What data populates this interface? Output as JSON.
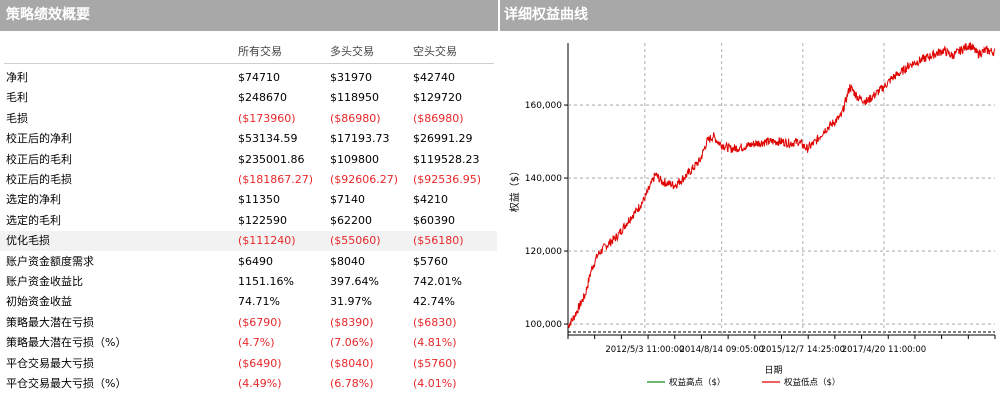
{
  "left_panel": {
    "title": "策略绩效概要",
    "columns": [
      "所有交易",
      "多头交易",
      "空头交易"
    ],
    "rows": [
      {
        "label": "净利",
        "values": [
          "$74710",
          "$31970",
          "$42740"
        ],
        "negative": false
      },
      {
        "label": "毛利",
        "values": [
          "$248670",
          "$118950",
          "$129720"
        ],
        "negative": false
      },
      {
        "label": "毛损",
        "values": [
          "($173960)",
          "($86980)",
          "($86980)"
        ],
        "negative": true
      },
      {
        "label": "校正后的净利",
        "values": [
          "$53134.59",
          "$17193.73",
          "$26991.29"
        ],
        "negative": false
      },
      {
        "label": "校正后的毛利",
        "values": [
          "$235001.86",
          "$109800",
          "$119528.23"
        ],
        "negative": false
      },
      {
        "label": "校正后的毛损",
        "values": [
          "($181867.27)",
          "($92606.27)",
          "($92536.95)"
        ],
        "negative": true
      },
      {
        "label": "选定的净利",
        "values": [
          "$11350",
          "$7140",
          "$4210"
        ],
        "negative": false
      },
      {
        "label": "选定的毛利",
        "values": [
          "$122590",
          "$62200",
          "$60390"
        ],
        "negative": false
      },
      {
        "label": "优化毛损",
        "values": [
          "($111240)",
          "($55060)",
          "($56180)"
        ],
        "negative": true
      },
      {
        "label": "账户资金额度需求",
        "values": [
          "$6490",
          "$8040",
          "$5760"
        ],
        "negative": false
      },
      {
        "label": "账户资金收益比",
        "values": [
          "1151.16%",
          "397.64%",
          "742.01%"
        ],
        "negative": false
      },
      {
        "label": "初始资金收益",
        "values": [
          "74.71%",
          "31.97%",
          "42.74%"
        ],
        "negative": false
      },
      {
        "label": "策略最大潜在亏损",
        "values": [
          "($6790)",
          "($8390)",
          "($6830)"
        ],
        "negative": true
      },
      {
        "label": "策略最大潜在亏损（%）",
        "values": [
          "(4.7%)",
          "(7.06%)",
          "(4.81%)"
        ],
        "negative": true
      },
      {
        "label": "平仓交易最大亏损",
        "values": [
          "($6490)",
          "($8040)",
          "($5760)"
        ],
        "negative": true
      },
      {
        "label": "平仓交易最大亏损（%）",
        "values": [
          "(4.49%)",
          "(6.78%)",
          "(4.01%)"
        ],
        "negative": true
      }
    ]
  },
  "right_panel": {
    "title": "详细权益曲线"
  },
  "colors": {
    "header_bg": "#a8a8a8",
    "negative": "#e8282a",
    "equity_line": "#e00000",
    "high_line": "#1a8a1a"
  },
  "chart_data": {
    "type": "line",
    "title": "",
    "xlabel": "日期",
    "ylabel": "权益（$）",
    "ylim": [
      97000,
      177000
    ],
    "yticks": [
      100000,
      120000,
      140000,
      160000
    ],
    "ytick_labels": [
      "100,000",
      "120,000",
      "140,000",
      "160,000"
    ],
    "xtick_labels": [
      "2012/5/3 11:00:00",
      "2014/8/14 09:05:00",
      "2015/12/7 14:25:00",
      "2017/4/20 11:00:00"
    ],
    "grid": true,
    "legend_position": "bottom",
    "series": [
      {
        "name": "权益高点（$）",
        "color": "#1a8a1a",
        "values": []
      },
      {
        "name": "权益低点（$）",
        "color": "#e00000",
        "anchors": [
          [
            0,
            99500
          ],
          [
            0.012,
            101500
          ],
          [
            0.025,
            104500
          ],
          [
            0.04,
            108000
          ],
          [
            0.055,
            115000
          ],
          [
            0.07,
            119000
          ],
          [
            0.085,
            121000
          ],
          [
            0.1,
            122500
          ],
          [
            0.115,
            124000
          ],
          [
            0.13,
            126500
          ],
          [
            0.145,
            129000
          ],
          [
            0.16,
            131000
          ],
          [
            0.175,
            133500
          ],
          [
            0.19,
            137000
          ],
          [
            0.205,
            141000
          ],
          [
            0.22,
            139000
          ],
          [
            0.235,
            138500
          ],
          [
            0.25,
            138000
          ],
          [
            0.265,
            139500
          ],
          [
            0.28,
            141000
          ],
          [
            0.295,
            143000
          ],
          [
            0.31,
            145000
          ],
          [
            0.325,
            150000
          ],
          [
            0.34,
            151500
          ],
          [
            0.355,
            149500
          ],
          [
            0.38,
            148000
          ],
          [
            0.41,
            148500
          ],
          [
            0.44,
            149500
          ],
          [
            0.47,
            150000
          ],
          [
            0.5,
            150000
          ],
          [
            0.52,
            149500
          ],
          [
            0.54,
            150000
          ],
          [
            0.56,
            148000
          ],
          [
            0.58,
            150000
          ],
          [
            0.6,
            153000
          ],
          [
            0.62,
            155000
          ],
          [
            0.64,
            157000
          ],
          [
            0.66,
            165000
          ],
          [
            0.68,
            162000
          ],
          [
            0.7,
            161000
          ],
          [
            0.72,
            163000
          ],
          [
            0.74,
            165000
          ],
          [
            0.76,
            167500
          ],
          [
            0.78,
            169000
          ],
          [
            0.8,
            171000
          ],
          [
            0.82,
            172000
          ],
          [
            0.84,
            173000
          ],
          [
            0.86,
            174000
          ],
          [
            0.88,
            175000
          ],
          [
            0.9,
            173500
          ],
          [
            0.92,
            175000
          ],
          [
            0.94,
            176500
          ],
          [
            0.96,
            174000
          ],
          [
            0.98,
            175000
          ],
          [
            1.0,
            174500
          ]
        ]
      }
    ]
  }
}
